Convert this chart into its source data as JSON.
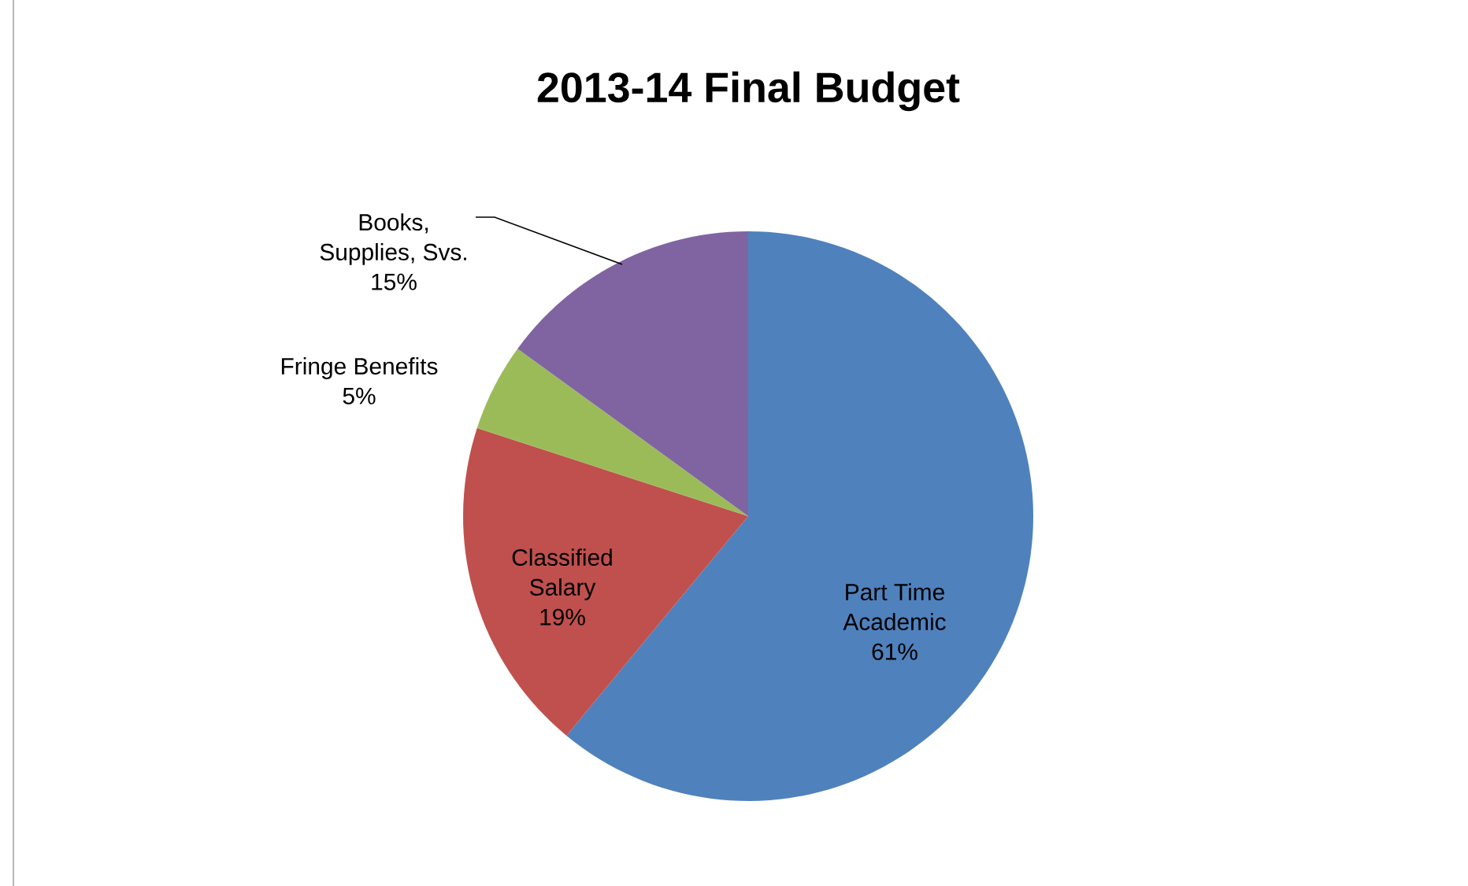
{
  "chart_data": {
    "type": "pie",
    "title": "2013-14 Final Budget",
    "categories": [
      "Part Time Academic",
      "Classified Salary",
      "Fringe Benefits",
      "Books, Supplies, Svs."
    ],
    "values": [
      61,
      19,
      5,
      15
    ],
    "value_labels": [
      "61%",
      "19%",
      "5%",
      "15%"
    ],
    "colors": [
      "#4f81bd",
      "#c0504d",
      "#9bbb59",
      "#8064a2"
    ],
    "legend": false
  }
}
